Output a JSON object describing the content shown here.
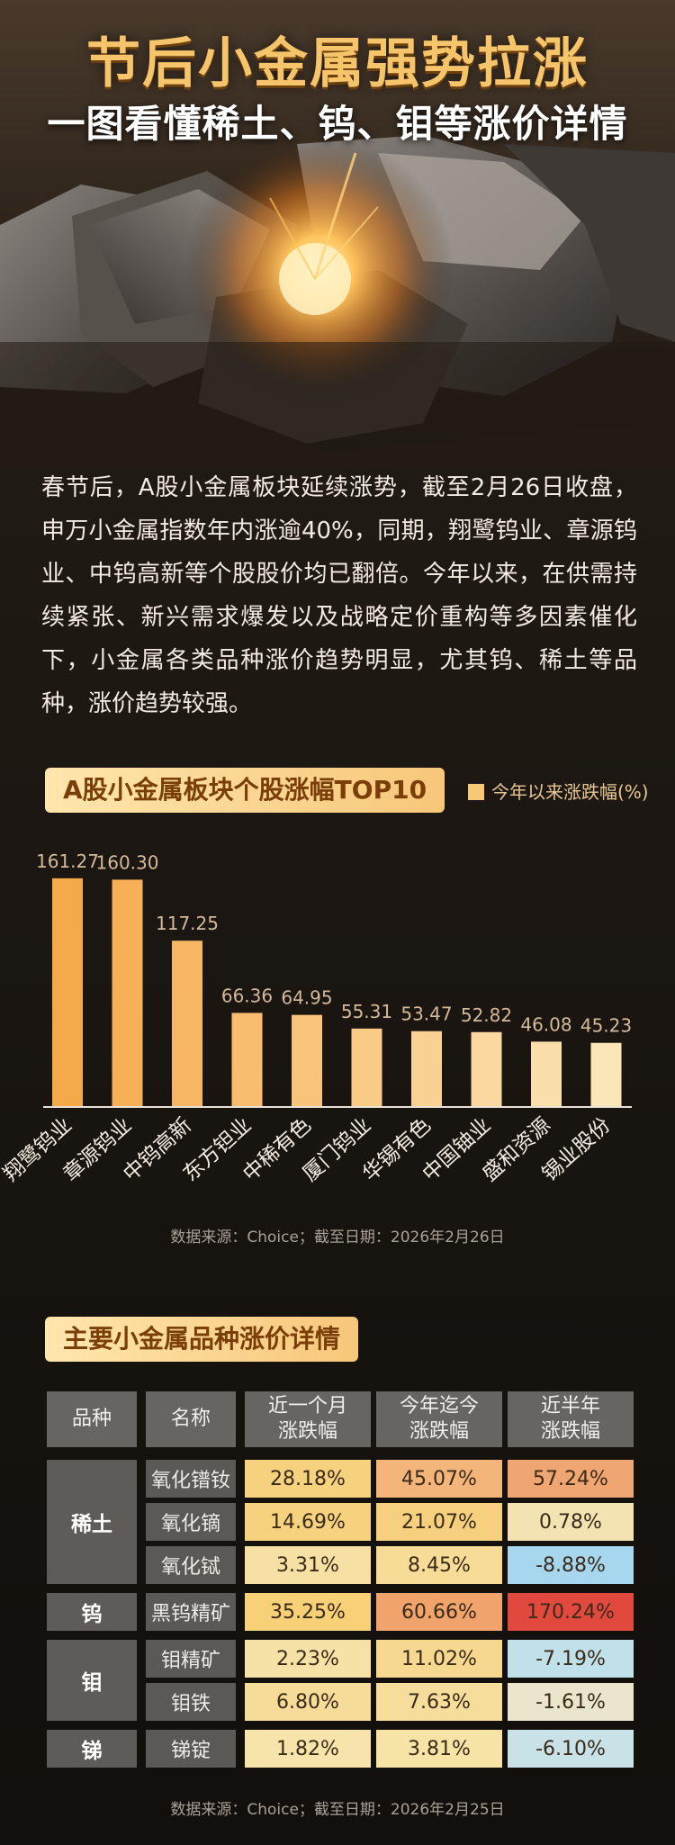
{
  "header": {
    "title": "节后小金属强势拉涨",
    "subtitle": "一图看懂稀土、钨、钼等涨价详情"
  },
  "intro": "春节后，A股小金属板块延续涨势，截至2月26日收盘，申万小金属指数年内涨逾40%，同期，翔鹭钨业、章源钨业、中钨高新等个股股价均已翻倍。今年以来，在供需持续紧张、新兴需求爆发以及战略定价重构等多因素催化下，小金属各类品种涨价趋势明显，尤其钨、稀土等品种，涨价趋势较强。",
  "chart_section": {
    "label": "A股小金属板块个股涨幅TOP10",
    "legend": "今年以来涨跌幅(%)",
    "source": "数据来源：Choice；截至日期：2026年2月26日"
  },
  "chart_data": {
    "type": "bar",
    "title": "A股小金属板块个股涨幅TOP10",
    "categories": [
      "翔鹭钨业",
      "章源钨业",
      "中钨高新",
      "东方钽业",
      "中稀有色",
      "厦门钨业",
      "华锡有色",
      "中国铀业",
      "盛和资源",
      "锡业股份"
    ],
    "series": [
      {
        "name": "今年以来涨跌幅(%)",
        "values": [
          161.27,
          160.3,
          117.25,
          66.36,
          64.95,
          55.31,
          53.47,
          52.82,
          46.08,
          45.23
        ]
      }
    ],
    "value_labels": [
      "161.27",
      "160.30",
      "117.25",
      "66.36",
      "64.95",
      "55.31",
      "53.47",
      "52.82",
      "46.08",
      "45.23"
    ],
    "ylim": [
      0,
      165
    ],
    "grid": false,
    "legend_position": "top-right",
    "colors": {
      "bar_top": "#f6a94a",
      "bar_bottom": "#ffe7b0"
    }
  },
  "table_section": {
    "label": "主要小金属品种涨价详情",
    "headers": [
      "品种",
      "名称",
      "近一个月\n涨跌幅",
      "今年迄今\n涨跌幅",
      "近半年\n涨跌幅"
    ],
    "groups": [
      {
        "category": "稀土",
        "rows": [
          {
            "name": "氧化镨钕",
            "month": "28.18%",
            "ytd": "45.07%",
            "half": "57.24%",
            "colors": [
              "#f7d27e",
              "#f3b57a",
              "#f0a672"
            ]
          },
          {
            "name": "氧化镝",
            "month": "14.69%",
            "ytd": "21.07%",
            "half": "0.78%",
            "colors": [
              "#f7d27e",
              "#f6d07e",
              "#f3e3b2"
            ]
          },
          {
            "name": "氧化铽",
            "month": "3.31%",
            "ytd": "8.45%",
            "half": "-8.88%",
            "colors": [
              "#f6e0a3",
              "#f6dc96",
              "#a7d6ef"
            ]
          }
        ]
      },
      {
        "category": "钨",
        "rows": [
          {
            "name": "黑钨精矿",
            "month": "35.25%",
            "ytd": "60.66%",
            "half": "170.24%",
            "colors": [
              "#f8d078",
              "#f1a36c",
              "#e2493e"
            ]
          }
        ]
      },
      {
        "category": "钼",
        "rows": [
          {
            "name": "钼精矿",
            "month": "2.23%",
            "ytd": "11.02%",
            "half": "-7.19%",
            "colors": [
              "#f6e2a6",
              "#f6d891",
              "#c0e0ea"
            ]
          },
          {
            "name": "钼铁",
            "month": "6.80%",
            "ytd": "7.63%",
            "half": "-1.61%",
            "colors": [
              "#f6dc98",
              "#f6dd9b",
              "#e9e6cc"
            ]
          }
        ]
      },
      {
        "category": "锑",
        "rows": [
          {
            "name": "锑锭",
            "month": "1.82%",
            "ytd": "3.81%",
            "half": "-6.10%",
            "colors": [
              "#f6e4aa",
              "#f6e3a6",
              "#c8e2e8"
            ]
          }
        ]
      }
    ],
    "source": "数据来源：Choice；截至日期：2026年2月25日"
  }
}
